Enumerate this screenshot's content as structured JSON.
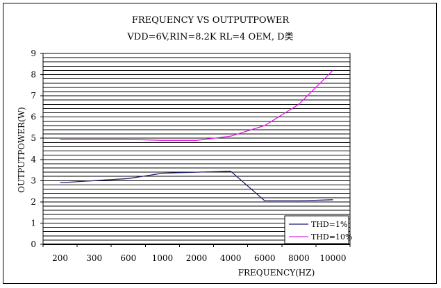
{
  "chart_data": {
    "type": "line",
    "title": "FREQUENCY VS OUTPUTPOWER",
    "subtitle": "VDD=6V,RIN=8.2K RL=4 OEM, D类",
    "xlabel": "FREQUENCY(HZ)",
    "ylabel": "OUTPUTPOWER(W)",
    "categories": [
      "200",
      "300",
      "600",
      "1000",
      "2000",
      "4000",
      "6000",
      "8000",
      "10000"
    ],
    "ylim": [
      0,
      9
    ],
    "yticks": [
      "0",
      "1",
      "2",
      "3",
      "4",
      "5",
      "6",
      "7",
      "8",
      "9"
    ],
    "y_minor_step": 0.2,
    "grid": true,
    "legend_position": "bottom-right",
    "series": [
      {
        "name": "THD=1%",
        "color": "#1f1f6e",
        "values": [
          2.9,
          3.0,
          3.1,
          3.35,
          3.4,
          3.45,
          2.05,
          2.05,
          2.1
        ]
      },
      {
        "name": "THD=10%",
        "color": "#e020e0",
        "values": [
          4.95,
          4.95,
          4.95,
          4.9,
          4.9,
          5.1,
          5.6,
          6.6,
          8.2
        ]
      }
    ]
  }
}
